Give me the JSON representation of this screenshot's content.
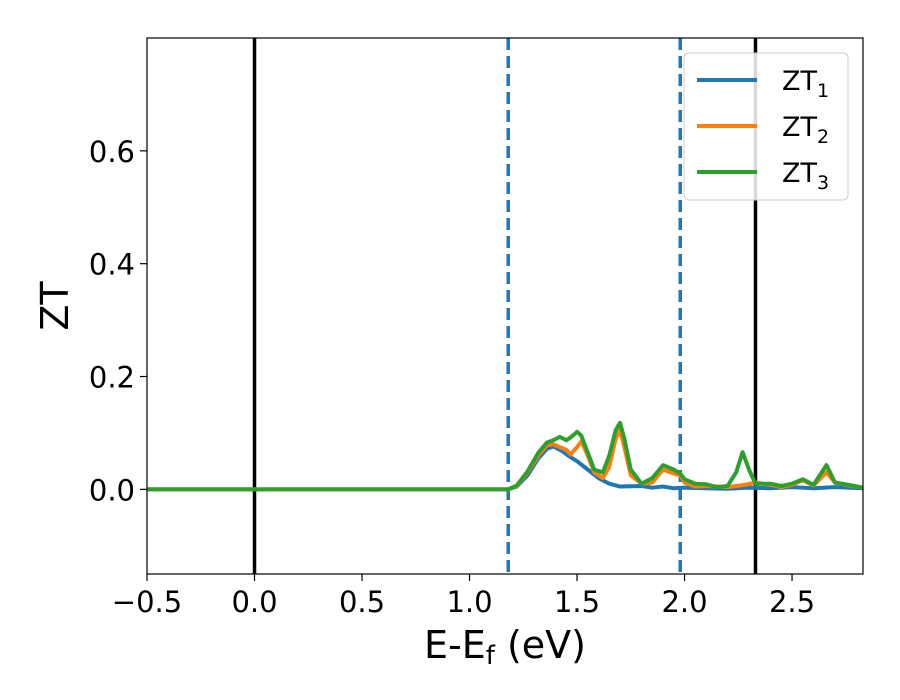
{
  "chart_data": {
    "type": "line",
    "title": "",
    "xlabel": "E-E",
    "xlabel_sub": "f",
    "xlabel_suffix": " (eV)",
    "ylabel": "ZT",
    "xlim": [
      -0.5,
      2.83
    ],
    "ylim": [
      -0.15,
      0.8
    ],
    "xticks": [
      -0.5,
      0.0,
      0.5,
      1.0,
      1.5,
      2.0,
      2.5
    ],
    "xtick_labels": [
      "−0.5",
      "0.0",
      "0.5",
      "1.0",
      "1.5",
      "2.0",
      "2.5"
    ],
    "yticks": [
      0.0,
      0.2,
      0.4,
      0.6
    ],
    "ytick_labels": [
      "0.0",
      "0.2",
      "0.4",
      "0.6"
    ],
    "grid": false,
    "legend_position": "top-right",
    "vlines": [
      {
        "x": 0.0,
        "color": "#000000",
        "style": "solid"
      },
      {
        "x": 2.33,
        "color": "#000000",
        "style": "solid"
      },
      {
        "x": 1.18,
        "color": "#1f77b4",
        "style": "dashed"
      },
      {
        "x": 1.98,
        "color": "#1f77b4",
        "style": "dashed"
      }
    ],
    "series": [
      {
        "name": "ZT",
        "sub": "1",
        "color": "#1f77b4",
        "points": [
          [
            -0.5,
            0
          ],
          [
            1.18,
            0
          ],
          [
            1.22,
            0.005
          ],
          [
            1.27,
            0.025
          ],
          [
            1.32,
            0.055
          ],
          [
            1.36,
            0.072
          ],
          [
            1.39,
            0.076
          ],
          [
            1.43,
            0.068
          ],
          [
            1.47,
            0.057
          ],
          [
            1.5,
            0.05
          ],
          [
            1.55,
            0.035
          ],
          [
            1.6,
            0.02
          ],
          [
            1.65,
            0.01
          ],
          [
            1.7,
            0.005
          ],
          [
            1.8,
            0.006
          ],
          [
            1.85,
            0.003
          ],
          [
            1.9,
            0.005
          ],
          [
            1.95,
            0.002
          ],
          [
            2.0,
            0.003
          ],
          [
            2.1,
            0.002
          ],
          [
            2.2,
            0.001
          ],
          [
            2.3,
            0.003
          ],
          [
            2.4,
            0.002
          ],
          [
            2.5,
            0.004
          ],
          [
            2.6,
            0.002
          ],
          [
            2.7,
            0.004
          ],
          [
            2.83,
            0.002
          ]
        ]
      },
      {
        "name": "ZT",
        "sub": "2",
        "color": "#ff7f0e",
        "points": [
          [
            -0.5,
            0
          ],
          [
            1.18,
            0
          ],
          [
            1.22,
            0.006
          ],
          [
            1.27,
            0.03
          ],
          [
            1.32,
            0.06
          ],
          [
            1.36,
            0.078
          ],
          [
            1.39,
            0.08
          ],
          [
            1.42,
            0.075
          ],
          [
            1.45,
            0.07
          ],
          [
            1.47,
            0.062
          ],
          [
            1.5,
            0.075
          ],
          [
            1.52,
            0.085
          ],
          [
            1.55,
            0.06
          ],
          [
            1.58,
            0.03
          ],
          [
            1.62,
            0.02
          ],
          [
            1.65,
            0.04
          ],
          [
            1.68,
            0.09
          ],
          [
            1.7,
            0.105
          ],
          [
            1.72,
            0.075
          ],
          [
            1.75,
            0.025
          ],
          [
            1.8,
            0.01
          ],
          [
            1.85,
            0.012
          ],
          [
            1.9,
            0.035
          ],
          [
            1.95,
            0.028
          ],
          [
            1.98,
            0.025
          ],
          [
            2.0,
            0.012
          ],
          [
            2.05,
            0.005
          ],
          [
            2.1,
            0.006
          ],
          [
            2.2,
            0.004
          ],
          [
            2.28,
            0.008
          ],
          [
            2.33,
            0.012
          ],
          [
            2.4,
            0.008
          ],
          [
            2.45,
            0.004
          ],
          [
            2.5,
            0.008
          ],
          [
            2.55,
            0.016
          ],
          [
            2.6,
            0.007
          ],
          [
            2.66,
            0.03
          ],
          [
            2.7,
            0.012
          ],
          [
            2.75,
            0.008
          ],
          [
            2.83,
            0.003
          ]
        ]
      },
      {
        "name": "ZT",
        "sub": "3",
        "color": "#2ca02c",
        "points": [
          [
            -0.5,
            0
          ],
          [
            1.18,
            0
          ],
          [
            1.22,
            0.007
          ],
          [
            1.27,
            0.032
          ],
          [
            1.32,
            0.065
          ],
          [
            1.36,
            0.083
          ],
          [
            1.39,
            0.087
          ],
          [
            1.42,
            0.093
          ],
          [
            1.45,
            0.087
          ],
          [
            1.47,
            0.092
          ],
          [
            1.5,
            0.102
          ],
          [
            1.52,
            0.095
          ],
          [
            1.55,
            0.065
          ],
          [
            1.58,
            0.035
          ],
          [
            1.62,
            0.03
          ],
          [
            1.65,
            0.06
          ],
          [
            1.68,
            0.105
          ],
          [
            1.7,
            0.118
          ],
          [
            1.72,
            0.09
          ],
          [
            1.75,
            0.035
          ],
          [
            1.8,
            0.01
          ],
          [
            1.85,
            0.02
          ],
          [
            1.9,
            0.043
          ],
          [
            1.95,
            0.035
          ],
          [
            1.98,
            0.028
          ],
          [
            2.0,
            0.018
          ],
          [
            2.05,
            0.01
          ],
          [
            2.1,
            0.009
          ],
          [
            2.15,
            0.004
          ],
          [
            2.2,
            0.006
          ],
          [
            2.24,
            0.03
          ],
          [
            2.27,
            0.066
          ],
          [
            2.3,
            0.035
          ],
          [
            2.33,
            0.01
          ],
          [
            2.4,
            0.01
          ],
          [
            2.45,
            0.006
          ],
          [
            2.5,
            0.01
          ],
          [
            2.55,
            0.018
          ],
          [
            2.6,
            0.008
          ],
          [
            2.66,
            0.043
          ],
          [
            2.7,
            0.012
          ],
          [
            2.75,
            0.009
          ],
          [
            2.83,
            0.003
          ]
        ]
      }
    ]
  }
}
